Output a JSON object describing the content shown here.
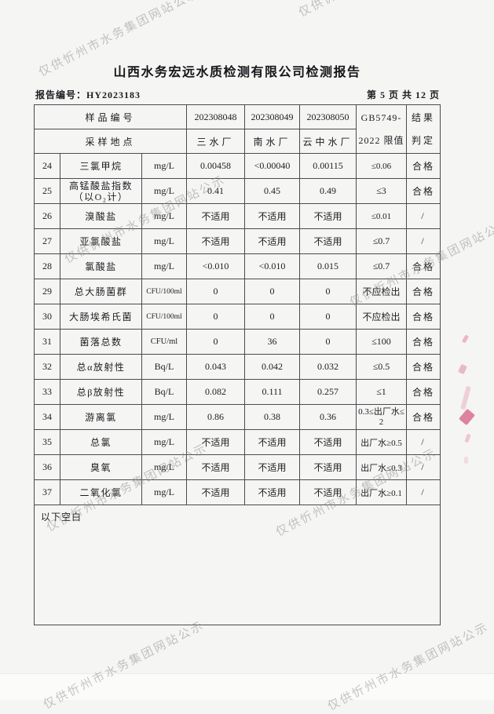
{
  "watermark": {
    "text": "仅供忻州市水务集团网站公示"
  },
  "header": {
    "title": "山西水务宏远水质检测有限公司检测报告",
    "report_no": "报告编号：HY2023183",
    "page_info": "第 5 页 共 12 页"
  },
  "table": {
    "header": {
      "row1_label": "样品编号",
      "row2_label": "采样地点",
      "sample_ids": [
        "202308048",
        "202308049",
        "202308050"
      ],
      "locations": [
        "三水厂",
        "南水厂",
        "云中水厂"
      ],
      "limit_line1": "GB5749-",
      "limit_line2": "2022 限值",
      "result_line1": "结果",
      "result_line2": "判定"
    },
    "rows": [
      {
        "no": "24",
        "name": "三氯甲烷",
        "unit": "mg/L",
        "v1": "0.00458",
        "v2": "<0.00040",
        "v3": "0.00115",
        "limit": "≤0.06",
        "result": "合格"
      },
      {
        "no": "25",
        "name": "高锰酸盐指数",
        "name2": "（以O₂计）",
        "unit": "mg/L",
        "v1": "0.41",
        "v2": "0.45",
        "v3": "0.49",
        "limit": "≤3",
        "result": "合格"
      },
      {
        "no": "26",
        "name": "溴酸盐",
        "unit": "mg/L",
        "v1": "不适用",
        "v2": "不适用",
        "v3": "不适用",
        "limit": "≤0.01",
        "result": "/"
      },
      {
        "no": "27",
        "name": "亚氯酸盐",
        "unit": "mg/L",
        "v1": "不适用",
        "v2": "不适用",
        "v3": "不适用",
        "limit": "≤0.7",
        "result": "/"
      },
      {
        "no": "28",
        "name": "氯酸盐",
        "unit": "mg/L",
        "v1": "<0.010",
        "v2": "<0.010",
        "v3": "0.015",
        "limit": "≤0.7",
        "result": "合格"
      },
      {
        "no": "29",
        "name": "总大肠菌群",
        "unit": "CFU/100ml",
        "v1": "0",
        "v2": "0",
        "v3": "0",
        "limit": "不应检出",
        "result": "合格"
      },
      {
        "no": "30",
        "name": "大肠埃希氏菌",
        "unit": "CFU/100ml",
        "v1": "0",
        "v2": "0",
        "v3": "0",
        "limit": "不应检出",
        "result": "合格"
      },
      {
        "no": "31",
        "name": "菌落总数",
        "unit": "CFU/ml",
        "v1": "0",
        "v2": "36",
        "v3": "0",
        "limit": "≤100",
        "result": "合格"
      },
      {
        "no": "32",
        "name": "总α放射性",
        "unit": "Bq/L",
        "v1": "0.043",
        "v2": "0.042",
        "v3": "0.032",
        "limit": "≤0.5",
        "result": "合格"
      },
      {
        "no": "33",
        "name": "总β放射性",
        "unit": "Bq/L",
        "v1": "0.082",
        "v2": "0.111",
        "v3": "0.257",
        "limit": "≤1",
        "result": "合格"
      },
      {
        "no": "34",
        "name": "游离氯",
        "unit": "mg/L",
        "v1": "0.86",
        "v2": "0.38",
        "v3": "0.36",
        "limit": "0.3≤出厂水≤",
        "limit2": "2",
        "result": "合格"
      },
      {
        "no": "35",
        "name": "总氯",
        "unit": "mg/L",
        "v1": "不适用",
        "v2": "不适用",
        "v3": "不适用",
        "limit": "出厂水≥0.5",
        "result": "/"
      },
      {
        "no": "36",
        "name": "臭氧",
        "unit": "mg/L",
        "v1": "不适用",
        "v2": "不适用",
        "v3": "不适用",
        "limit": "出厂水≤0.3",
        "result": "/"
      },
      {
        "no": "37",
        "name": "二氧化氯",
        "unit": "mg/L",
        "v1": "不适用",
        "v2": "不适用",
        "v3": "不适用",
        "limit": "出厂水≥0.1",
        "result": "/"
      }
    ],
    "footer_note": "以下空白"
  },
  "colors": {
    "paper": "#f5f5f3",
    "table_border": "#4a4a52",
    "text": "#1d1d22",
    "watermark_gray": "#8c8c8c",
    "scan_mark_pink": "#d96d93"
  }
}
